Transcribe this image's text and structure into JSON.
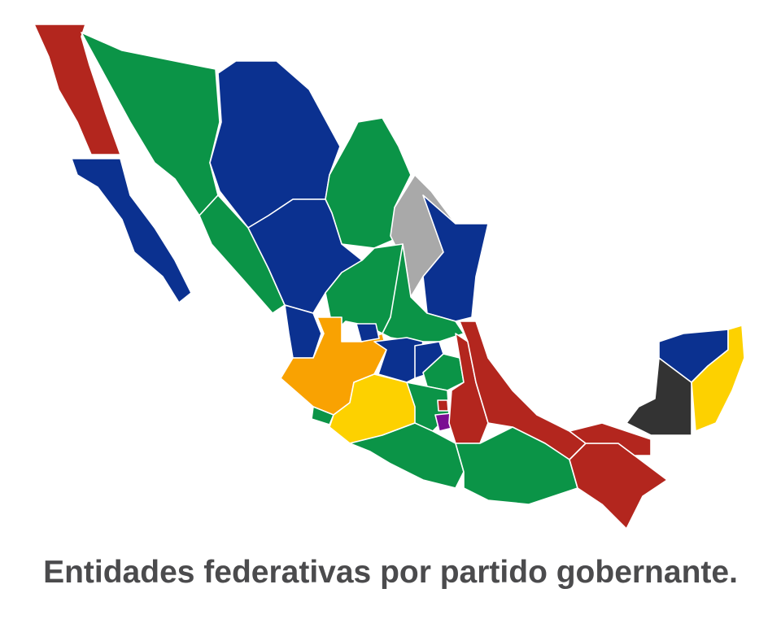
{
  "caption": "Entidades federativas por partido gobernante.",
  "colors": {
    "red": "#B3261E",
    "green": "#0B9447",
    "blue": "#0B3190",
    "orange": "#F9A202",
    "yellow": "#FDD100",
    "purple": "#7B0E92",
    "gray": "#A9A9A9",
    "dark": "#333333"
  },
  "regions": {
    "baja-california": "red",
    "baja-california-sur": "blue",
    "sonora": "green",
    "chihuahua": "blue",
    "coahuila": "green",
    "nuevo-leon": "gray",
    "tamaulipas": "blue",
    "sinaloa": "green",
    "durango": "blue",
    "zacatecas": "green",
    "san-luis-potosi": "green",
    "nayarit": "blue",
    "aguascalientes": "blue",
    "jalisco": "orange",
    "colima": "green",
    "michoacan": "yellow",
    "guanajuato": "blue",
    "queretaro": "blue",
    "hidalgo": "green",
    "estado-de-mexico": "green",
    "ciudad-de-mexico": "red",
    "morelos": "purple",
    "tlaxcala": "green",
    "puebla": "red",
    "veracruz": "red",
    "guerrero": "green",
    "oaxaca": "green",
    "chiapas": "red",
    "tabasco": "red",
    "campeche": "dark",
    "yucatan": "blue",
    "quintana-roo": "yellow"
  }
}
